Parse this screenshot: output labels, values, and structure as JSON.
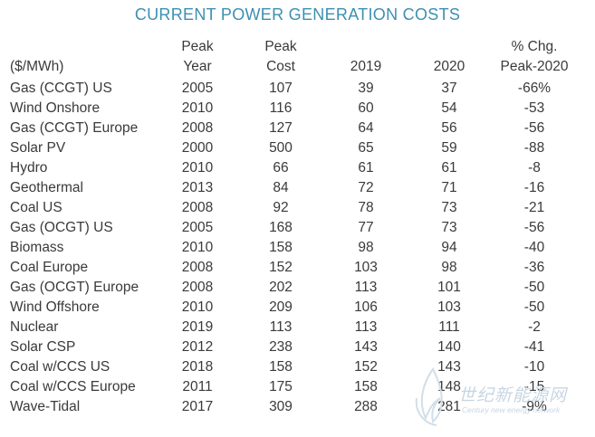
{
  "title": "CURRENT POWER GENERATION COSTS",
  "headers": {
    "unit": "($/MWh)",
    "peak_year_1": "Peak",
    "peak_year_2": "Year",
    "peak_cost_1": "Peak",
    "peak_cost_2": "Cost",
    "y2019": "2019",
    "y2020": "2020",
    "chg_1": "% Chg.",
    "chg_2": "Peak-2020"
  },
  "rows": [
    {
      "name": "Gas (CCGT) US",
      "year": "2005",
      "peak": "107",
      "y2019": "39",
      "y2020": "37",
      "chg": "-66%"
    },
    {
      "name": "Wind Onshore",
      "year": "2010",
      "peak": "116",
      "y2019": "60",
      "y2020": "54",
      "chg": "-53"
    },
    {
      "name": "Gas (CCGT) Europe",
      "year": "2008",
      "peak": "127",
      "y2019": "64",
      "y2020": "56",
      "chg": "-56"
    },
    {
      "name": "Solar PV",
      "year": "2000",
      "peak": "500",
      "y2019": "65",
      "y2020": "59",
      "chg": "-88"
    },
    {
      "name": "Hydro",
      "year": "2010",
      "peak": "66",
      "y2019": "61",
      "y2020": "61",
      "chg": "-8"
    },
    {
      "name": "Geothermal",
      "year": "2013",
      "peak": "84",
      "y2019": "72",
      "y2020": "71",
      "chg": "-16"
    },
    {
      "name": "Coal US",
      "year": "2008",
      "peak": "92",
      "y2019": "78",
      "y2020": "73",
      "chg": "-21"
    },
    {
      "name": "Gas (OCGT) US",
      "year": "2005",
      "peak": "168",
      "y2019": "77",
      "y2020": "73",
      "chg": "-56"
    },
    {
      "name": "Biomass",
      "year": "2010",
      "peak": "158",
      "y2019": "98",
      "y2020": "94",
      "chg": "-40"
    },
    {
      "name": "Coal Europe",
      "year": "2008",
      "peak": "152",
      "y2019": "103",
      "y2020": "98",
      "chg": "-36"
    },
    {
      "name": "Gas (OCGT) Europe",
      "year": "2008",
      "peak": "202",
      "y2019": "113",
      "y2020": "101",
      "chg": "-50"
    },
    {
      "name": "Wind Offshore",
      "year": "2010",
      "peak": "209",
      "y2019": "106",
      "y2020": "103",
      "chg": "-50"
    },
    {
      "name": "Nuclear",
      "year": "2019",
      "peak": "113",
      "y2019": "113",
      "y2020": "111",
      "chg": "-2"
    },
    {
      "name": "Solar CSP",
      "year": "2012",
      "peak": "238",
      "y2019": "143",
      "y2020": "140",
      "chg": "-41"
    },
    {
      "name": "Coal w/CCS US",
      "year": "2018",
      "peak": "158",
      "y2019": "152",
      "y2020": "143",
      "chg": "-10"
    },
    {
      "name": "Coal w/CCS Europe",
      "year": "2011",
      "peak": "175",
      "y2019": "158",
      "y2020": "148",
      "chg": "-15"
    },
    {
      "name": "Wave-Tidal",
      "year": "2017",
      "peak": "309",
      "y2019": "288",
      "y2020": "281",
      "chg": "-9%"
    }
  ],
  "watermark": {
    "text": "世纪新能源网",
    "sub": "Century new energy network"
  },
  "colors": {
    "title": "#3d8fb1",
    "text": "#3a3a3a",
    "watermark": "#c8d6e2"
  }
}
